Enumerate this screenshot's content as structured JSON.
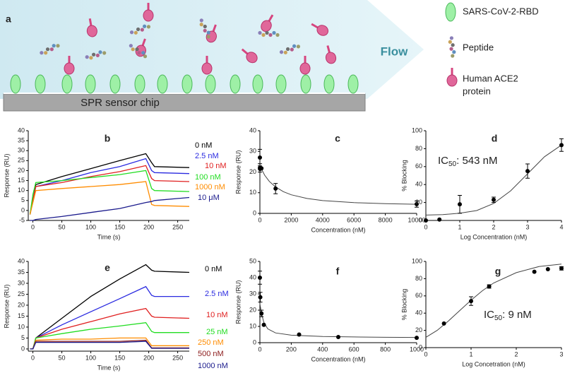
{
  "diagram": {
    "label": "a",
    "flow": "Flow",
    "chip": "SPR sensor chip",
    "legend": [
      [
        "SARS-CoV-2-RBD"
      ],
      [
        "Peptide"
      ],
      [
        "Human ACE2",
        "protein"
      ]
    ]
  },
  "chart_data": [
    {
      "type": "line",
      "label": "b",
      "x_label": "Time (s)",
      "y_label": "Response (RU)",
      "xlim": [
        -8,
        270
      ],
      "xticks": [
        0,
        50,
        100,
        150,
        200,
        250
      ],
      "ylim": [
        -5,
        40
      ],
      "yticks": [
        -5,
        0,
        5,
        10,
        15,
        20,
        25,
        30,
        35,
        40
      ],
      "x": [
        -5,
        0,
        5,
        50,
        100,
        150,
        195,
        205,
        210,
        270
      ],
      "series": [
        {
          "name": "0 nM",
          "color": "#000000",
          "values": [
            -2,
            5,
            13,
            17,
            21,
            25,
            28.5,
            24,
            22,
            21.5
          ]
        },
        {
          "name": "2.5 nM",
          "color": "#2a2ae0",
          "values": [
            -2,
            5,
            12,
            15,
            19,
            22,
            26,
            20,
            19,
            18.5
          ]
        },
        {
          "name": "10 nM",
          "color": "#e02020",
          "values": [
            -2,
            5,
            12,
            14,
            17,
            19.5,
            22.5,
            16,
            15,
            14.5
          ]
        },
        {
          "name": "100 nM",
          "color": "#22dd22",
          "values": [
            -2,
            8,
            14,
            15,
            16.5,
            18,
            20,
            11,
            10,
            9.5
          ]
        },
        {
          "name": "1000 nM",
          "color": "#ff8c00",
          "values": [
            -2,
            4,
            10,
            11,
            12,
            13,
            14.5,
            3,
            2.5,
            2
          ]
        },
        {
          "name": "10 μM",
          "color": "#1a1a8c",
          "values": [
            -5,
            -5,
            -4.5,
            -3,
            -1,
            1,
            4,
            4.5,
            5,
            6.5
          ]
        }
      ]
    },
    {
      "type": "scatter",
      "label": "c",
      "x_label": "Concentration (nM)",
      "y_label": "Response (RU)",
      "xlim": [
        0,
        10000
      ],
      "xticks": [
        0,
        2000,
        4000,
        6000,
        8000,
        10000
      ],
      "ylim": [
        0,
        40
      ],
      "yticks": [
        0,
        10,
        20,
        30,
        40
      ],
      "x": [
        0,
        2.5,
        10,
        100,
        1000,
        10000
      ],
      "values": [
        27,
        22,
        21.5,
        21.8,
        12,
        4.5
      ],
      "errors": [
        4,
        2,
        null,
        null,
        2.5,
        1.5
      ],
      "fit_x": [
        0,
        100,
        300,
        600,
        1000,
        1500,
        2000,
        3000,
        4000,
        6000,
        8000,
        10000
      ],
      "fit_values": [
        23,
        21.5,
        18.5,
        15.5,
        12.8,
        10.5,
        9,
        7.2,
        6.2,
        5.2,
        4.7,
        4.4
      ]
    },
    {
      "type": "scatter",
      "label": "d",
      "x_label": "Log Concentration (nM)",
      "y_label": "% Blocking",
      "annotation": {
        "text": "IC",
        "subscript": "50",
        "rest": ": 543 nM"
      },
      "xlim": [
        0,
        4
      ],
      "xticks": [
        0,
        1,
        2,
        3,
        4
      ],
      "ylim": [
        0,
        100
      ],
      "yticks": [
        0,
        20,
        40,
        60,
        80,
        100
      ],
      "x": [
        0,
        0.4,
        1,
        2,
        3,
        4
      ],
      "values": [
        0,
        1,
        18,
        23,
        55,
        84
      ],
      "errors": [
        null,
        null,
        10,
        3,
        8,
        7
      ],
      "fit_x": [
        0,
        0.5,
        1,
        1.5,
        2,
        2.5,
        3,
        3.5,
        4
      ],
      "fit_values": [
        6,
        6.5,
        8,
        11,
        19,
        33,
        52,
        71,
        84
      ]
    },
    {
      "type": "line",
      "label": "e",
      "x_label": "Time (s)",
      "y_label": "Response (RU)",
      "xlim": [
        -8,
        270
      ],
      "xticks": [
        0,
        50,
        100,
        150,
        200,
        250
      ],
      "ylim": [
        -1,
        40
      ],
      "yticks": [
        0,
        5,
        10,
        15,
        20,
        25,
        30,
        35,
        40
      ],
      "x": [
        -5,
        0,
        5,
        50,
        100,
        150,
        195,
        205,
        210,
        270
      ],
      "series": [
        {
          "name": "0 nM",
          "color": "#000000",
          "values": [
            0,
            0,
            5,
            14,
            24,
            32,
            38.5,
            36,
            35.5,
            35
          ]
        },
        {
          "name": "2.5 nM",
          "color": "#2a2ae0",
          "values": [
            0,
            0,
            5,
            11,
            17,
            23,
            28.5,
            24.5,
            24,
            24
          ]
        },
        {
          "name": "10 nM",
          "color": "#e02020",
          "values": [
            0,
            0,
            5,
            9,
            12.5,
            16,
            18.5,
            15,
            14.5,
            14
          ]
        },
        {
          "name": "25 nM",
          "color": "#22dd22",
          "values": [
            0,
            0,
            5,
            7,
            9,
            10.5,
            12,
            8,
            7.5,
            7.5
          ]
        },
        {
          "name": "250 nM",
          "color": "#ff8c00",
          "values": [
            0,
            0,
            4,
            4.5,
            4.5,
            5,
            5,
            1.5,
            1.5,
            1.5
          ]
        },
        {
          "name": "500 nM",
          "color": "#8b1a1a",
          "values": [
            0,
            0,
            3.5,
            3.5,
            3.5,
            3.5,
            4,
            0.5,
            0.5,
            0.5
          ]
        },
        {
          "name": "1000 nM",
          "color": "#1a1a8c",
          "values": [
            0,
            0,
            3,
            3,
            3,
            3,
            3.5,
            0.3,
            0.3,
            0.3
          ]
        }
      ]
    },
    {
      "type": "scatter",
      "label": "f",
      "x_label": "Concentration (nM)",
      "y_label": "Response (RU)",
      "xlim": [
        0,
        1000
      ],
      "xticks": [
        0,
        200,
        400,
        600,
        800,
        1000
      ],
      "ylim": [
        0,
        50
      ],
      "yticks": [
        0,
        10,
        20,
        30,
        40,
        50
      ],
      "x": [
        0,
        2.5,
        10,
        25,
        250,
        500,
        1000
      ],
      "values": [
        40,
        28,
        18,
        11,
        5,
        3.5,
        3
      ],
      "errors": [
        4,
        3,
        2,
        null,
        null,
        null,
        null
      ],
      "fit_x": [
        0,
        10,
        25,
        50,
        100,
        200,
        400,
        600,
        800,
        1000
      ],
      "fit_values": [
        24,
        18,
        12.5,
        8.5,
        6,
        4.6,
        3.8,
        3.5,
        3.3,
        3.2
      ]
    },
    {
      "type": "scatter",
      "label": "g",
      "x_label": "Log Concetration (nM)",
      "y_label": "% Blocking",
      "annotation": {
        "text": "IC",
        "subscript": "50",
        "rest": ": 9 nM"
      },
      "xlim": [
        0,
        3
      ],
      "xticks": [
        0,
        1,
        2,
        3
      ],
      "ylim": [
        0,
        100
      ],
      "yticks": [
        0,
        20,
        40,
        60,
        80,
        100
      ],
      "x": [
        0.4,
        1,
        1.4,
        2.4,
        2.7,
        3
      ],
      "values": [
        28,
        54,
        71,
        88,
        91,
        92
      ],
      "errors": [
        null,
        5,
        2,
        null,
        null,
        2
      ],
      "fit_x": [
        0,
        0.25,
        0.5,
        0.75,
        1,
        1.25,
        1.5,
        2,
        2.5,
        3
      ],
      "fit_values": [
        12,
        20,
        31,
        43,
        55,
        66,
        75,
        87,
        94,
        97
      ]
    }
  ]
}
